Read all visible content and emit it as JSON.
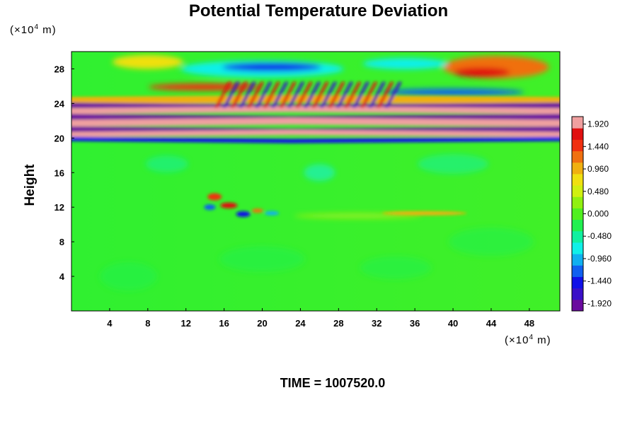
{
  "chart_data": {
    "type": "heatmap",
    "title": "Potential Temperature Deviation",
    "xlabel": "",
    "ylabel": "Height",
    "x_unit": {
      "prefix": "(×10",
      "exp": "4",
      "suffix": " m)"
    },
    "y_unit": {
      "prefix": "(×10",
      "exp": "4",
      "suffix": " m)"
    },
    "xlim": [
      0,
      51.2
    ],
    "ylim": [
      0,
      30
    ],
    "x_ticks": [
      4,
      8,
      12,
      16,
      20,
      24,
      28,
      32,
      36,
      40,
      44,
      48
    ],
    "y_ticks": [
      4,
      8,
      12,
      16,
      20,
      24,
      28
    ],
    "colorbar": {
      "min": -2.08,
      "max": 2.08,
      "labels": [
        "1.920",
        "1.440",
        "0.960",
        "0.480",
        "0.000",
        "-0.480",
        "-0.960",
        "-1.440",
        "-1.920"
      ],
      "colors": [
        "#6a0a9e",
        "#3a10c8",
        "#1010e8",
        "#1060f0",
        "#10b0f0",
        "#10f0e8",
        "#10f0a0",
        "#20f050",
        "#50f020",
        "#90f010",
        "#d0f010",
        "#f0e010",
        "#f0b010",
        "#f07010",
        "#f03010",
        "#e01010",
        "#f0a0a0"
      ]
    },
    "features": [
      {
        "band": "upper-warm",
        "x_range": [
          38,
          51
        ],
        "y_range": [
          26.5,
          29.5
        ],
        "value": 1.4
      },
      {
        "band": "upper-cold",
        "x_range": [
          14,
          28
        ],
        "y_range": [
          27.0,
          29.0
        ],
        "value": -1.6
      },
      {
        "band": "warm",
        "x_range": [
          8,
          22
        ],
        "y_range": [
          25.5,
          26.3
        ],
        "value": 1.5
      },
      {
        "band": "alternating",
        "x_range": [
          0,
          51.2
        ],
        "y_range": [
          19.5,
          24.5
        ],
        "value": 2.0
      },
      {
        "band": "perturbation",
        "x_range": [
          12,
          22
        ],
        "y_range": [
          10,
          13.5
        ],
        "value": 1.2
      }
    ]
  },
  "time_label": "TIME = 1007520.0"
}
